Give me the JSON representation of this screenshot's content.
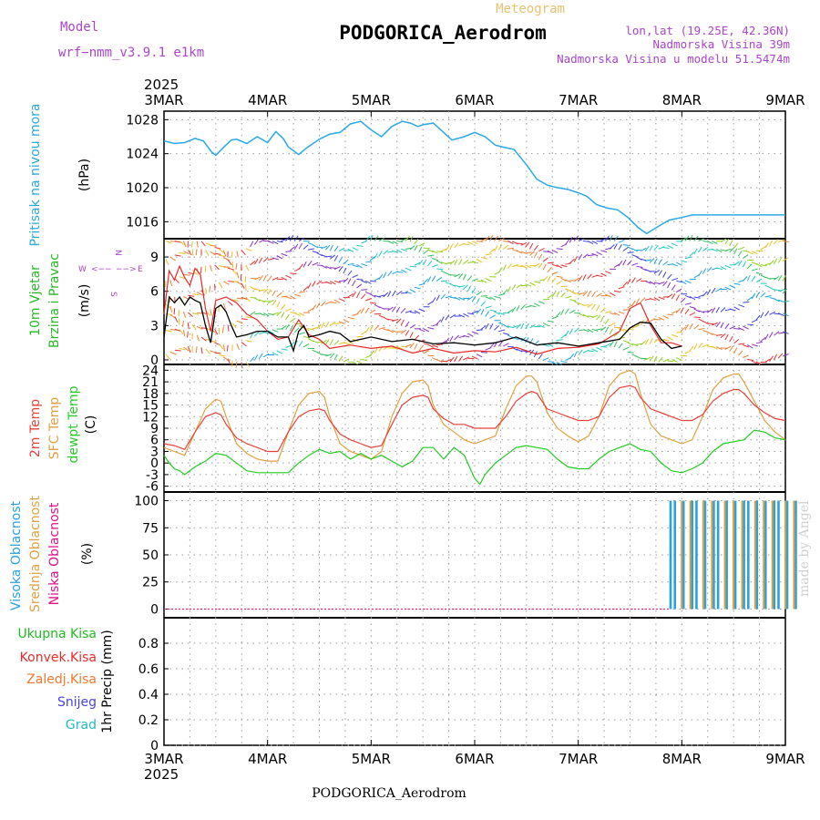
{
  "header": {
    "model_label": "Model",
    "model_name": "wrf−nmm_v3.9.1 e1km",
    "chart_type_label": "Meteogram",
    "station": "PODGORICA_Aerodrom",
    "lonlat": "lon,lat (19.25E, 42.36N)",
    "elevation": "Nadmorska Visina 39m",
    "model_elevation": "Nadmorska Visina u modelu 51.5474m",
    "top_year": "2025",
    "bottom_year": "2025",
    "footer_station": "PODGORICA_Aerodrom",
    "watermark": "made by Angel"
  },
  "colors": {
    "pressure": "#2aa9e8",
    "wind_speed": "#000000",
    "gust": "#e8282a",
    "temp_2m": "#e8403a",
    "temp_sfc": "#e0a040",
    "dewpt": "#22cc22",
    "cloud_high": "#2aa0e0",
    "cloud_mid": "#e0a040",
    "cloud_low": "#e0108a",
    "label_green": "#22bb22",
    "label_cyan": "#22aadd",
    "label_red": "#e82a2a",
    "label_orange": "#f07830",
    "label_blue": "#4444dd",
    "label_teal": "#22bbbb",
    "label_purple": "#aa44cc",
    "label_tan": "#e8c070"
  },
  "chart_data": [
    {
      "type": "line",
      "panel": "pressure",
      "ylabel_lines": [
        "Pritisak na nivou mora"
      ],
      "unit": "(hPa)",
      "x_ticks": [
        "3MAR",
        "4MAR",
        "5MAR",
        "6MAR",
        "7MAR",
        "8MAR",
        "9MAR"
      ],
      "ylim": [
        1014,
        1029
      ],
      "yticks": [
        1016,
        1020,
        1024,
        1028
      ],
      "grid": true,
      "series": [
        {
          "x_days": [
            0,
            0.1,
            0.2,
            0.3,
            0.38,
            0.46,
            0.5,
            0.58,
            0.65,
            0.7,
            0.8,
            0.9,
            1.0,
            1.08,
            1.15,
            1.2,
            1.3,
            1.38,
            1.5,
            1.6,
            1.7,
            1.8,
            1.9,
            2.0,
            2.1,
            2.2,
            2.3,
            2.38,
            2.45,
            2.5,
            2.6,
            2.7,
            2.78,
            2.9,
            3.0,
            3.1,
            3.2,
            3.3,
            3.38,
            3.5,
            3.6,
            3.7,
            3.8,
            3.9,
            4.0,
            4.08,
            4.18,
            4.28,
            4.38,
            4.48,
            4.58,
            4.66,
            4.78,
            4.88,
            5.0,
            5.1,
            5.18,
            5.24,
            5.3,
            5.4,
            5.5,
            5.6,
            5.7,
            5.8,
            5.9,
            6.0
          ],
          "values": [
            1025.5,
            1025.2,
            1025.3,
            1025.8,
            1025.5,
            1024.2,
            1023.8,
            1024.8,
            1025.6,
            1025.7,
            1025.2,
            1026.0,
            1025.3,
            1026.6,
            1025.8,
            1024.8,
            1023.9,
            1024.7,
            1025.7,
            1026.3,
            1026.5,
            1027.5,
            1027.8,
            1026.8,
            1026.0,
            1027.2,
            1027.8,
            1027.6,
            1027.2,
            1027.4,
            1027.6,
            1026.5,
            1025.6,
            1026.0,
            1026.5,
            1026.0,
            1025.0,
            1024.7,
            1024.5,
            1022.7,
            1021.0,
            1020.3,
            1020.0,
            1019.8,
            1019.4,
            1019.0,
            1018.0,
            1017.6,
            1017.4,
            1016.5,
            1015.3,
            1014.6,
            1015.5,
            1016.2,
            1016.5,
            1016.8,
            1016.8,
            1016.8,
            1016.8,
            1016.8,
            1016.8,
            1016.8,
            1016.8,
            1016.8,
            1016.8,
            1016.8
          ]
        }
      ]
    },
    {
      "type": "line",
      "panel": "wind",
      "ylabel_lines": [
        "10m Vjetar",
        "Brzina i Pravac"
      ],
      "unit": "(m/s)",
      "compass_labels": [
        "W",
        "E",
        "N",
        "S"
      ],
      "ylim": [
        -0.4,
        10.6
      ],
      "yticks": [
        0,
        3,
        6,
        9
      ],
      "grid": true,
      "series": [
        {
          "name_role": "speed",
          "x_days": [
            0,
            0.05,
            0.1,
            0.15,
            0.2,
            0.25,
            0.3,
            0.35,
            0.4,
            0.45,
            0.5,
            0.55,
            0.6,
            0.65,
            0.7,
            0.8,
            0.9,
            1.0,
            1.1,
            1.2,
            1.25,
            1.3,
            1.35,
            1.4,
            1.5,
            1.6,
            1.7,
            1.8,
            2.0,
            2.2,
            2.4,
            2.6,
            2.8,
            3.0,
            3.2,
            3.4,
            3.6,
            3.8,
            4.0,
            4.2,
            4.4,
            4.5,
            4.6,
            4.7,
            4.8,
            4.9,
            5.0
          ],
          "values": [
            2.0,
            5.5,
            5.0,
            5.5,
            4.8,
            5.5,
            5.2,
            5.0,
            3.0,
            1.5,
            4.5,
            4.8,
            4.2,
            3.0,
            2.0,
            2.2,
            2.5,
            2.5,
            2.0,
            2.0,
            0.8,
            2.5,
            3.0,
            2.0,
            2.2,
            2.5,
            2.3,
            1.6,
            2.0,
            1.6,
            1.8,
            1.4,
            1.5,
            1.3,
            1.5,
            2.0,
            1.3,
            1.5,
            1.2,
            1.5,
            1.8,
            2.8,
            3.3,
            3.2,
            1.8,
            1.0,
            1.2
          ]
        },
        {
          "name_role": "gust",
          "x_days": [
            0,
            0.05,
            0.1,
            0.15,
            0.2,
            0.25,
            0.3,
            0.35,
            0.4,
            0.45,
            0.5,
            0.6,
            0.7,
            0.8,
            0.9,
            1.0,
            1.1,
            1.2,
            1.3,
            1.4,
            1.5,
            1.6,
            1.8,
            2.0,
            2.2,
            2.4,
            2.6,
            2.8,
            3.0,
            3.2,
            3.4,
            3.6,
            3.8,
            4.0,
            4.2,
            4.4,
            4.5,
            4.6,
            4.7,
            4.8,
            4.9,
            5.0
          ],
          "values": [
            4.0,
            7.8,
            7.0,
            8.2,
            7.2,
            6.5,
            8.0,
            7.5,
            4.5,
            2.5,
            5.2,
            5.5,
            5.0,
            4.0,
            3.5,
            2.5,
            1.8,
            2.0,
            3.5,
            2.2,
            1.8,
            1.0,
            1.3,
            1.0,
            1.2,
            0.6,
            1.0,
            0.6,
            0.8,
            0.7,
            1.1,
            0.5,
            1.0,
            1.1,
            1.4,
            2.5,
            4.5,
            5.0,
            3.0,
            1.5,
            1.5,
            1.2
          ]
        }
      ]
    },
    {
      "type": "line",
      "panel": "temperature",
      "ylabel_lines": [
        "2m Temp",
        "SFC Temp",
        "dewpt Temp"
      ],
      "unit": "(C)",
      "ylim": [
        -7.5,
        25.5
      ],
      "yticks": [
        -6,
        -3,
        0,
        3,
        6,
        9,
        12,
        15,
        18,
        21,
        24
      ],
      "grid": true,
      "series": [
        {
          "name": "2m Temp",
          "x_days": [
            0,
            0.1,
            0.2,
            0.3,
            0.4,
            0.5,
            0.55,
            0.6,
            0.7,
            0.8,
            0.9,
            1.0,
            1.1,
            1.2,
            1.3,
            1.4,
            1.5,
            1.55,
            1.6,
            1.7,
            1.8,
            1.9,
            2.0,
            2.1,
            2.2,
            2.3,
            2.4,
            2.5,
            2.55,
            2.6,
            2.7,
            2.8,
            2.9,
            3.0,
            3.1,
            3.2,
            3.3,
            3.4,
            3.5,
            3.55,
            3.6,
            3.7,
            3.8,
            3.9,
            4.0,
            4.1,
            4.2,
            4.3,
            4.4,
            4.5,
            4.55,
            4.6,
            4.7,
            4.8,
            4.9,
            5.0,
            5.1,
            5.2,
            5.3,
            5.4,
            5.5,
            5.55,
            5.6,
            5.7,
            5.8,
            5.9,
            6.0
          ],
          "values": [
            5,
            4.5,
            3.5,
            8,
            12,
            13,
            12.5,
            10,
            6.5,
            5,
            4,
            3,
            3,
            8,
            12,
            13.5,
            14,
            13.5,
            11,
            7.5,
            6,
            5,
            4,
            4.5,
            10,
            15,
            17,
            17.5,
            17,
            14,
            11.5,
            10,
            10,
            9,
            9,
            9,
            12,
            16,
            18,
            18.5,
            18,
            14,
            13,
            12,
            11,
            11,
            12,
            17,
            19.5,
            20,
            19.5,
            17,
            14,
            13,
            12,
            11,
            11,
            12.5,
            16,
            18,
            19,
            19,
            18,
            15,
            13,
            11.5,
            11
          ]
        },
        {
          "name": "SFC Temp",
          "x_days": [
            0,
            0.1,
            0.2,
            0.3,
            0.4,
            0.5,
            0.55,
            0.6,
            0.7,
            0.8,
            0.9,
            1.0,
            1.1,
            1.2,
            1.3,
            1.4,
            1.5,
            1.55,
            1.6,
            1.7,
            1.8,
            1.9,
            2.0,
            2.1,
            2.2,
            2.3,
            2.4,
            2.5,
            2.55,
            2.6,
            2.7,
            2.8,
            2.9,
            3.0,
            3.1,
            3.2,
            3.3,
            3.4,
            3.5,
            3.55,
            3.6,
            3.7,
            3.8,
            3.9,
            4.0,
            4.1,
            4.2,
            4.3,
            4.4,
            4.5,
            4.55,
            4.6,
            4.7,
            4.8,
            4.9,
            5.0,
            5.1,
            5.2,
            5.3,
            5.4,
            5.5,
            5.55,
            5.6,
            5.7,
            5.8,
            5.9,
            6.0
          ],
          "values": [
            4,
            3,
            2,
            8,
            14,
            16.5,
            16,
            12,
            5,
            2.5,
            1,
            0.5,
            0.5,
            8,
            15,
            18,
            18.5,
            17,
            12,
            5,
            3,
            2,
            1,
            3,
            12,
            18,
            21,
            21.5,
            20,
            15,
            10,
            8,
            6,
            5,
            6,
            7,
            14,
            20,
            22.5,
            22.5,
            21,
            13,
            9,
            7,
            5.5,
            7,
            12,
            20,
            23,
            24,
            23,
            18,
            10,
            7,
            6,
            5,
            6,
            12,
            19,
            22,
            23,
            23,
            21,
            16,
            11,
            8,
            6
          ]
        },
        {
          "name": "dewpt Temp",
          "x_days": [
            0,
            0.05,
            0.1,
            0.15,
            0.2,
            0.3,
            0.4,
            0.5,
            0.6,
            0.7,
            0.8,
            0.9,
            1.0,
            1.1,
            1.2,
            1.3,
            1.4,
            1.5,
            1.6,
            1.7,
            1.8,
            1.9,
            2.0,
            2.1,
            2.2,
            2.3,
            2.4,
            2.5,
            2.6,
            2.7,
            2.8,
            2.9,
            3.0,
            3.05,
            3.1,
            3.2,
            3.3,
            3.4,
            3.5,
            3.6,
            3.7,
            3.8,
            3.9,
            4.0,
            4.1,
            4.2,
            4.3,
            4.4,
            4.5,
            4.6,
            4.7,
            4.8,
            4.9,
            5.0,
            5.1,
            5.2,
            5.3,
            5.4,
            5.5,
            5.6,
            5.7,
            5.8,
            5.9,
            6.0
          ],
          "values": [
            2,
            0,
            -1.5,
            -2,
            -3,
            -1,
            0.5,
            2.5,
            2,
            0,
            -2,
            -2.5,
            -2.5,
            -2.5,
            -2.5,
            0,
            2,
            3.5,
            2.5,
            3,
            1,
            2.5,
            1,
            2,
            0.5,
            -1,
            0.5,
            4,
            4,
            1,
            4,
            2,
            -4,
            -5.5,
            -3,
            0,
            2,
            4,
            4.5,
            4,
            3.5,
            1,
            -1,
            -1.5,
            -1.5,
            1,
            3,
            4,
            5,
            3.5,
            3,
            0,
            -2,
            -2.5,
            -1.5,
            0,
            3,
            5,
            5.5,
            6,
            8.5,
            8,
            6.5,
            6
          ]
        }
      ]
    },
    {
      "type": "bar",
      "panel": "cloud",
      "ylabel_lines": [
        "Visoka Oblacnost",
        "Srednja Oblacnost",
        "Niska Oblacnost"
      ],
      "unit": "(%)",
      "ylim": [
        -8,
        108
      ],
      "yticks": [
        0,
        25,
        50,
        75,
        100
      ],
      "grid": true,
      "bar_start_day": 4.88,
      "bar_step_day": 0.0417,
      "series": [
        {
          "name": "Visoka Oblacnost",
          "values": [
            100,
            100,
            0,
            100,
            0,
            100,
            100,
            0,
            100,
            0,
            100,
            100,
            0,
            100,
            0,
            100,
            0,
            100,
            100,
            0,
            100,
            0,
            100,
            0,
            100,
            100,
            0,
            100,
            0,
            100
          ]
        },
        {
          "name": "Srednja Oblacnost",
          "values": [
            0,
            0,
            100,
            0,
            100,
            0,
            0,
            100,
            0,
            100,
            0,
            0,
            100,
            0,
            100,
            0,
            100,
            0,
            0,
            100,
            0,
            100,
            0,
            100,
            0,
            0,
            100,
            0,
            100,
            0
          ]
        }
      ]
    },
    {
      "type": "bar",
      "panel": "precip",
      "legend_lines": [
        "Ukupna Kisa",
        "Konvek.Kisa",
        "Zaledj.Kisa",
        "Snijeg",
        "Grad"
      ],
      "unit": "1hr Precip (mm)",
      "ylim": [
        0,
        1.0
      ],
      "yticks": [
        "0",
        "0.2",
        "0.4",
        "0.6",
        "0.8"
      ],
      "grid": true,
      "values": []
    }
  ]
}
